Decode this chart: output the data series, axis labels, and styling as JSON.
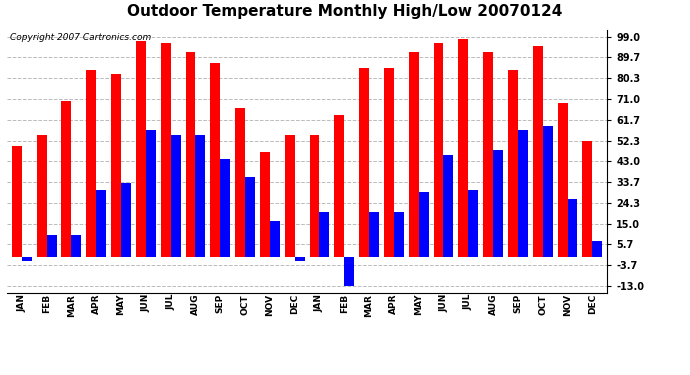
{
  "title": "Outdoor Temperature Monthly High/Low 20070124",
  "copyright": "Copyright 2007 Cartronics.com",
  "months": [
    "JAN",
    "FEB",
    "MAR",
    "APR",
    "MAY",
    "JUN",
    "JUL",
    "AUG",
    "SEP",
    "OCT",
    "NOV",
    "DEC",
    "JAN",
    "FEB",
    "MAR",
    "APR",
    "MAY",
    "JUN",
    "JUL",
    "AUG",
    "SEP",
    "OCT",
    "NOV",
    "DEC"
  ],
  "highs": [
    50,
    55,
    70,
    84,
    82,
    97,
    96,
    92,
    87,
    67,
    47,
    55,
    55,
    64,
    85,
    85,
    92,
    96,
    98,
    92,
    84,
    95,
    69,
    52
  ],
  "lows": [
    -2,
    10,
    10,
    30,
    33,
    57,
    55,
    55,
    44,
    36,
    16,
    -2,
    20,
    -13,
    20,
    20,
    29,
    46,
    30,
    48,
    57,
    59,
    26,
    7
  ],
  "yticks": [
    99.0,
    89.7,
    80.3,
    71.0,
    61.7,
    52.3,
    43.0,
    33.7,
    24.3,
    15.0,
    5.7,
    -3.7,
    -13.0
  ],
  "ylim": [
    -16,
    102
  ],
  "bar_color_high": "#FF0000",
  "bar_color_low": "#0000FF",
  "bg_color": "#FFFFFF",
  "grid_color": "#BBBBBB",
  "title_fontsize": 11,
  "copyright_fontsize": 6.5,
  "bar_width": 0.4
}
